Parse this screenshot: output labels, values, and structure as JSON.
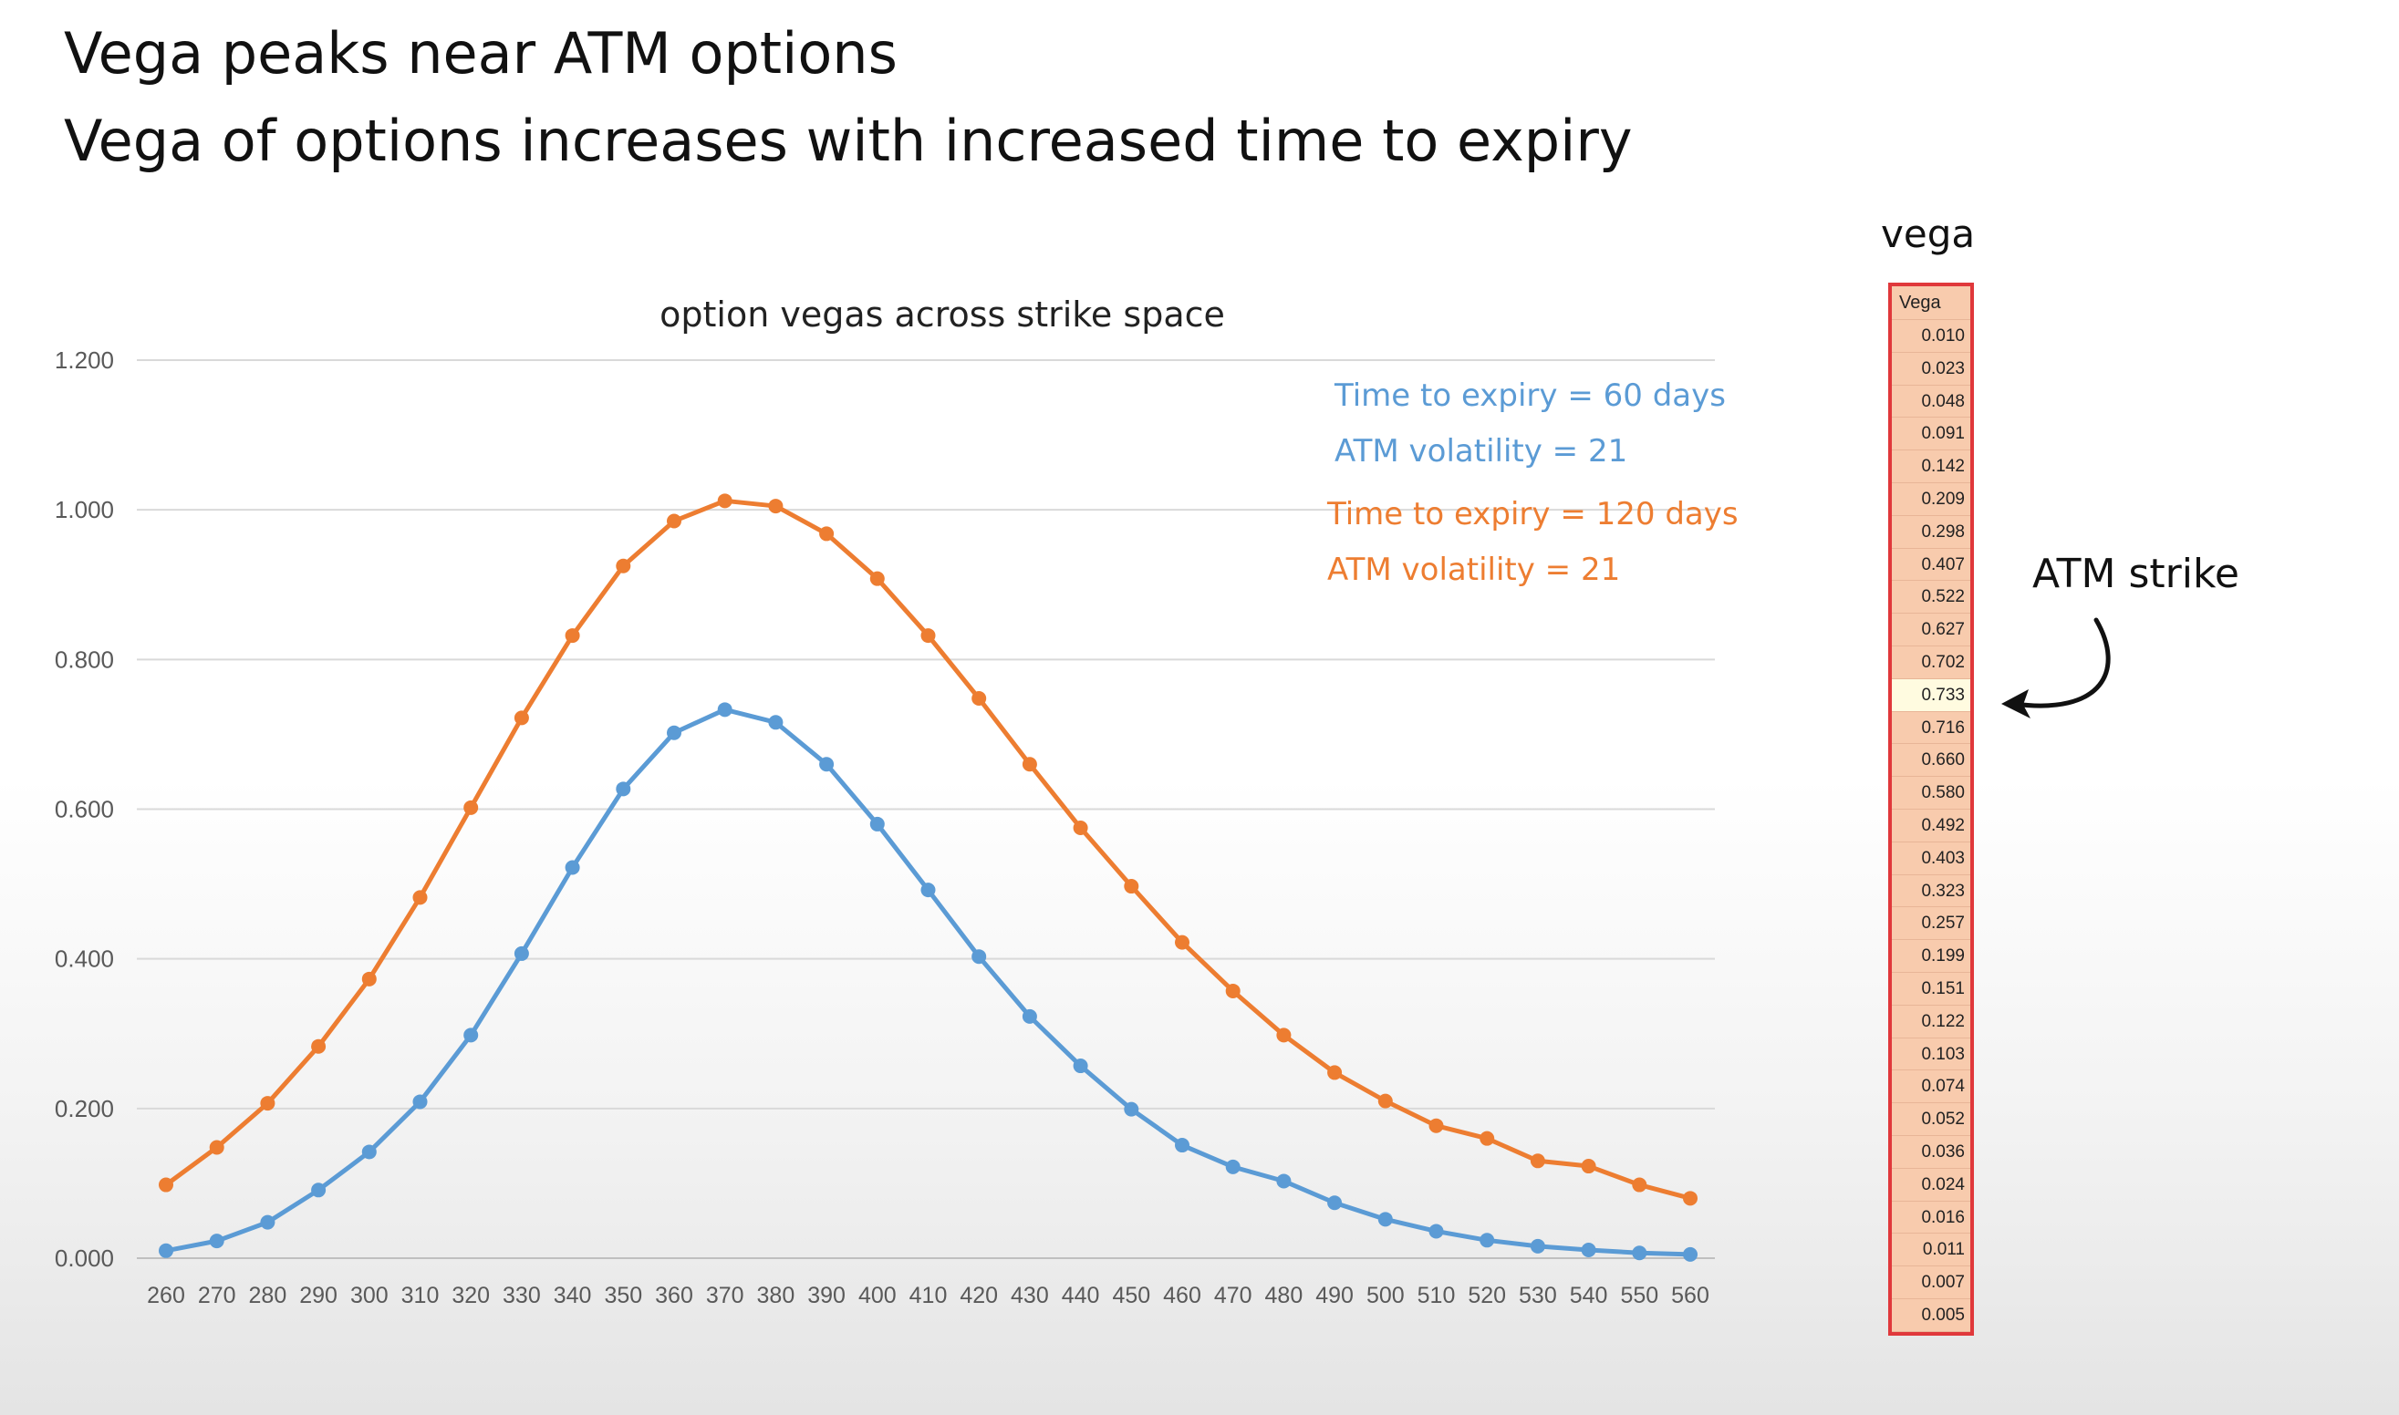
{
  "slide": {
    "title_line1": "Vega peaks near ATM options",
    "title_line2": "Vega of options increases with increased time to expiry"
  },
  "chart_data": {
    "type": "line",
    "title": "option vegas across strike space",
    "xlabel": "",
    "ylabel": "",
    "categories": [
      260,
      270,
      280,
      290,
      300,
      310,
      320,
      330,
      340,
      350,
      360,
      370,
      380,
      390,
      400,
      410,
      420,
      430,
      440,
      450,
      460,
      470,
      480,
      490,
      500,
      510,
      520,
      530,
      540,
      550,
      560
    ],
    "ylim": [
      0,
      1.2
    ],
    "yticks": [
      "0.000",
      "0.200",
      "0.400",
      "0.600",
      "0.800",
      "1.000",
      "1.200"
    ],
    "grid": true,
    "series": [
      {
        "color": "#5b9bd5",
        "values": [
          0.01,
          0.023,
          0.048,
          0.091,
          0.142,
          0.209,
          0.298,
          0.407,
          0.522,
          0.627,
          0.702,
          0.733,
          0.716,
          0.66,
          0.58,
          0.492,
          0.403,
          0.323,
          0.257,
          0.199,
          0.151,
          0.122,
          0.103,
          0.074,
          0.052,
          0.036,
          0.024,
          0.016,
          0.011,
          0.007,
          0.005
        ]
      },
      {
        "color": "#ed7d31",
        "values": [
          0.098,
          0.148,
          0.207,
          0.283,
          0.373,
          0.482,
          0.602,
          0.722,
          0.832,
          0.925,
          0.985,
          1.012,
          1.005,
          0.968,
          0.908,
          0.832,
          0.748,
          0.66,
          0.575,
          0.497,
          0.422,
          0.357,
          0.298,
          0.248,
          0.21,
          0.177,
          0.16,
          0.13,
          0.123,
          0.098,
          0.08
        ]
      }
    ],
    "annotations": [
      {
        "text": "Time to expiry = 60 days",
        "color": "#5b9bd5"
      },
      {
        "text": "ATM volatility = 21",
        "color": "#5b9bd5"
      },
      {
        "text": "Time to expiry = 120 days",
        "color": "#ed7d31"
      },
      {
        "text": "ATM volatility = 21",
        "color": "#ed7d31"
      }
    ]
  },
  "vega_table": {
    "heading": "vega",
    "header": "Vega",
    "values": [
      "0.010",
      "0.023",
      "0.048",
      "0.091",
      "0.142",
      "0.209",
      "0.298",
      "0.407",
      "0.522",
      "0.627",
      "0.702",
      "0.733",
      "0.716",
      "0.660",
      "0.580",
      "0.492",
      "0.403",
      "0.323",
      "0.257",
      "0.199",
      "0.151",
      "0.122",
      "0.103",
      "0.074",
      "0.052",
      "0.036",
      "0.024",
      "0.016",
      "0.011",
      "0.007",
      "0.005"
    ],
    "highlight_index": 11,
    "border_color": "#e0383b",
    "fill_color": "#f8cbad"
  },
  "atm_annotation": {
    "label": "ATM strike"
  }
}
